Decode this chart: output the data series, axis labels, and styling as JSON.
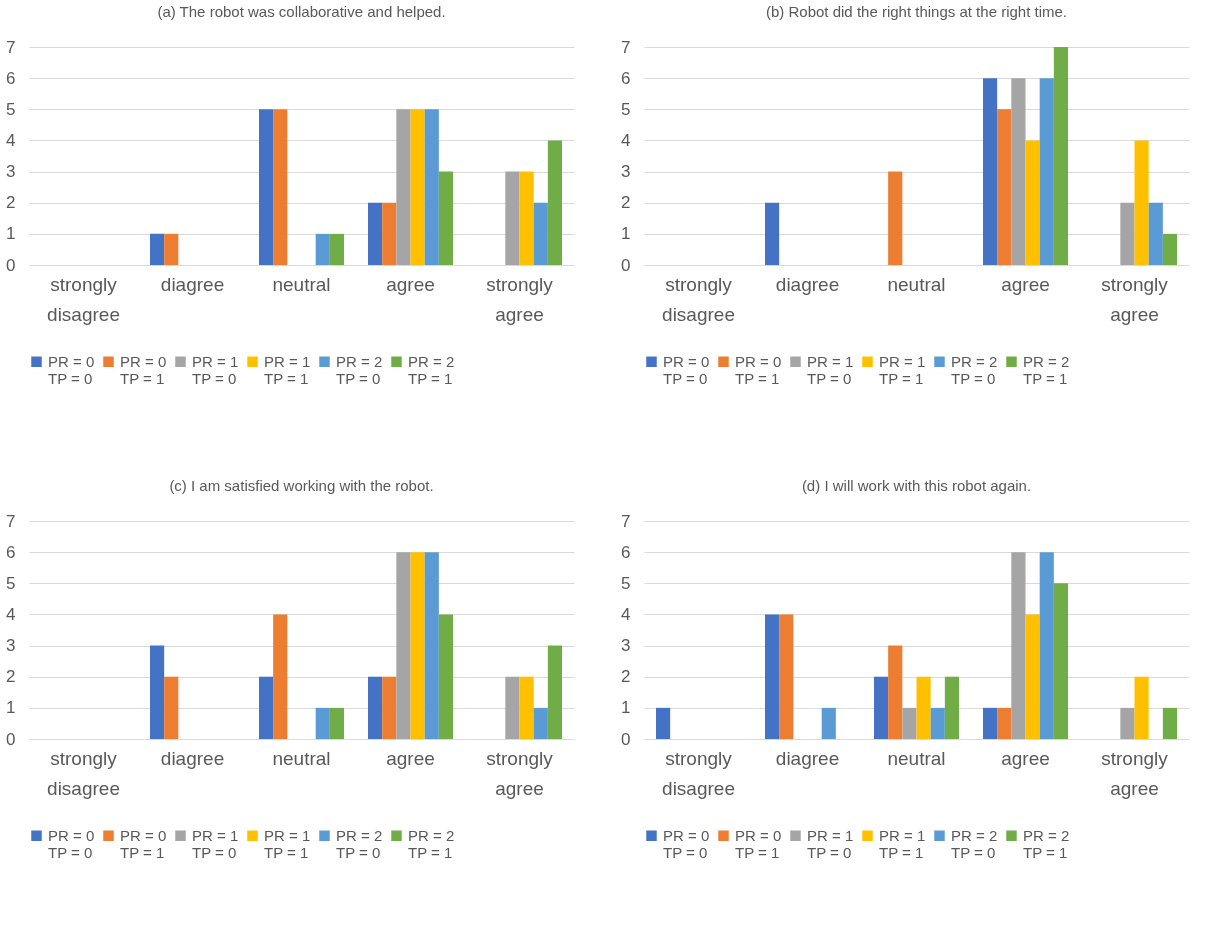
{
  "chart_data": [
    {
      "type": "bar",
      "title": "(a) The robot was collaborative and helped.",
      "categories": [
        "strongly disagree",
        "diagree",
        "neutral",
        "agree",
        "strongly agree"
      ],
      "ylim": [
        0,
        7
      ],
      "yticks": [
        0,
        1,
        2,
        3,
        4,
        5,
        6,
        7
      ],
      "grid": "y",
      "legend": "bottom",
      "series": [
        {
          "name": "PR = 0\nTP = 0",
          "color": "#4472c4",
          "values": [
            0,
            1,
            5,
            2,
            0
          ]
        },
        {
          "name": "PR = 0\nTP = 1",
          "color": "#ed7d31",
          "values": [
            0,
            1,
            5,
            2,
            0
          ]
        },
        {
          "name": "PR = 1\nTP = 0",
          "color": "#a5a5a5",
          "values": [
            0,
            0,
            0,
            5,
            3
          ]
        },
        {
          "name": "PR = 1\nTP = 1",
          "color": "#ffc000",
          "values": [
            0,
            0,
            0,
            5,
            3
          ]
        },
        {
          "name": "PR = 2\nTP = 0",
          "color": "#5b9bd5",
          "values": [
            0,
            0,
            1,
            5,
            2
          ]
        },
        {
          "name": "PR = 2\nTP = 1",
          "color": "#70ad47",
          "values": [
            0,
            0,
            1,
            3,
            4
          ]
        }
      ]
    },
    {
      "type": "bar",
      "title": "(b) Robot did the right things at the right time.",
      "categories": [
        "strongly disagree",
        "diagree",
        "neutral",
        "agree",
        "strongly agree"
      ],
      "ylim": [
        0,
        7
      ],
      "yticks": [
        0,
        1,
        2,
        3,
        4,
        5,
        6,
        7
      ],
      "grid": "y",
      "legend": "bottom",
      "series": [
        {
          "name": "PR = 0\nTP = 0",
          "color": "#4472c4",
          "values": [
            0,
            2,
            0,
            6,
            0
          ]
        },
        {
          "name": "PR = 0\nTP = 1",
          "color": "#ed7d31",
          "values": [
            0,
            0,
            3,
            5,
            0
          ]
        },
        {
          "name": "PR = 1\nTP = 0",
          "color": "#a5a5a5",
          "values": [
            0,
            0,
            0,
            6,
            2
          ]
        },
        {
          "name": "PR = 1\nTP = 1",
          "color": "#ffc000",
          "values": [
            0,
            0,
            0,
            4,
            4
          ]
        },
        {
          "name": "PR = 2\nTP = 0",
          "color": "#5b9bd5",
          "values": [
            0,
            0,
            0,
            6,
            2
          ]
        },
        {
          "name": "PR = 2\nTP = 1",
          "color": "#70ad47",
          "values": [
            0,
            0,
            0,
            7,
            1
          ]
        }
      ]
    },
    {
      "type": "bar",
      "title": "(c) I am satisfied working with the robot.",
      "categories": [
        "strongly disagree",
        "diagree",
        "neutral",
        "agree",
        "strongly agree"
      ],
      "ylim": [
        0,
        7
      ],
      "yticks": [
        0,
        1,
        2,
        3,
        4,
        5,
        6,
        7
      ],
      "grid": "y",
      "legend": "bottom",
      "series": [
        {
          "name": "PR = 0\nTP = 0",
          "color": "#4472c4",
          "values": [
            0,
            3,
            2,
            2,
            0
          ]
        },
        {
          "name": "PR = 0\nTP = 1",
          "color": "#ed7d31",
          "values": [
            0,
            2,
            4,
            2,
            0
          ]
        },
        {
          "name": "PR = 1\nTP = 0",
          "color": "#a5a5a5",
          "values": [
            0,
            0,
            0,
            6,
            2
          ]
        },
        {
          "name": "PR = 1\nTP = 1",
          "color": "#ffc000",
          "values": [
            0,
            0,
            0,
            6,
            2
          ]
        },
        {
          "name": "PR = 2\nTP = 0",
          "color": "#5b9bd5",
          "values": [
            0,
            0,
            1,
            6,
            1
          ]
        },
        {
          "name": "PR = 2\nTP = 1",
          "color": "#70ad47",
          "values": [
            0,
            0,
            1,
            4,
            3
          ]
        }
      ]
    },
    {
      "type": "bar",
      "title": "(d) I will work with this robot again.",
      "categories": [
        "strongly disagree",
        "diagree",
        "neutral",
        "agree",
        "strongly agree"
      ],
      "ylim": [
        0,
        7
      ],
      "yticks": [
        0,
        1,
        2,
        3,
        4,
        5,
        6,
        7
      ],
      "grid": "y",
      "legend": "bottom",
      "series": [
        {
          "name": "PR = 0\nTP = 0",
          "color": "#4472c4",
          "values": [
            1,
            4,
            2,
            1,
            0
          ]
        },
        {
          "name": "PR = 0\nTP = 1",
          "color": "#ed7d31",
          "values": [
            0,
            4,
            3,
            1,
            0
          ]
        },
        {
          "name": "PR = 1\nTP = 0",
          "color": "#a5a5a5",
          "values": [
            0,
            0,
            1,
            6,
            1
          ]
        },
        {
          "name": "PR = 1\nTP = 1",
          "color": "#ffc000",
          "values": [
            0,
            0,
            2,
            4,
            2
          ]
        },
        {
          "name": "PR = 2\nTP = 0",
          "color": "#5b9bd5",
          "values": [
            0,
            1,
            1,
            6,
            0
          ]
        },
        {
          "name": "PR = 2\nTP = 1",
          "color": "#70ad47",
          "values": [
            0,
            0,
            2,
            5,
            1
          ]
        }
      ]
    }
  ]
}
